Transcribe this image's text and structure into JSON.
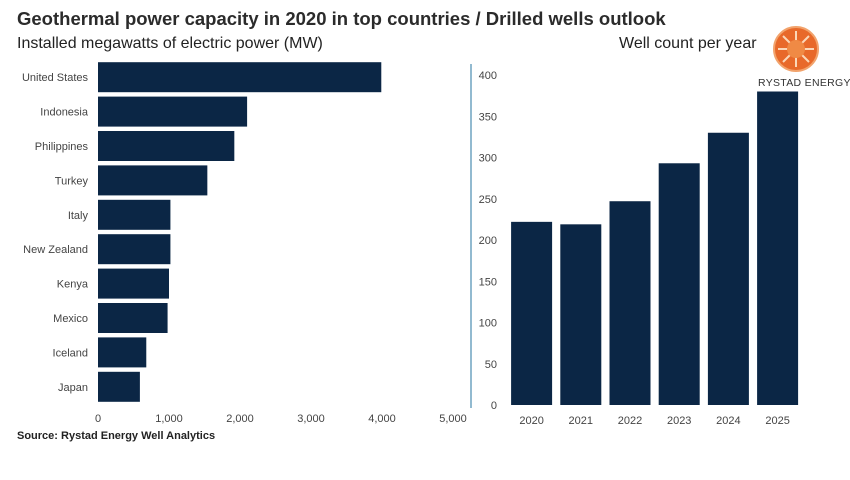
{
  "title": "Geothermal power capacity in 2020 in top countries / Drilled wells outlook",
  "source": "Source: Rystad Energy Well Analytics",
  "brand": {
    "name": "RYSTAD ENERGY",
    "logo_color": "#e8692a"
  },
  "colors": {
    "bar": "#0b2645",
    "axis": "#6fa3c0"
  },
  "chart_data": [
    {
      "type": "bar",
      "orientation": "horizontal",
      "subtitle": "Installed megawatts of electric power (MW)",
      "categories": [
        "United States",
        "Indonesia",
        "Philippines",
        "Turkey",
        "Italy",
        "New Zealand",
        "Kenya",
        "Mexico",
        "Iceland",
        "Japan"
      ],
      "values": [
        3990,
        2100,
        1920,
        1540,
        1020,
        1020,
        1000,
        980,
        680,
        590
      ],
      "xlim": [
        0,
        5000
      ],
      "xticks": [
        0,
        1000,
        2000,
        3000,
        4000,
        5000
      ],
      "xtick_labels": [
        "0",
        "1,000",
        "2,000",
        "3,000",
        "4,000",
        "5,000"
      ]
    },
    {
      "type": "bar",
      "subtitle": "Well count per year",
      "categories": [
        "2020",
        "2021",
        "2022",
        "2023",
        "2024",
        "2025"
      ],
      "values": [
        222,
        219,
        247,
        293,
        330,
        380
      ],
      "ylim": [
        0,
        400
      ],
      "yticks": [
        0,
        50,
        100,
        150,
        200,
        250,
        300,
        350,
        400
      ],
      "ytick_labels": [
        "0",
        "50",
        "100",
        "150",
        "200",
        "250",
        "300",
        "350",
        "400"
      ]
    }
  ]
}
